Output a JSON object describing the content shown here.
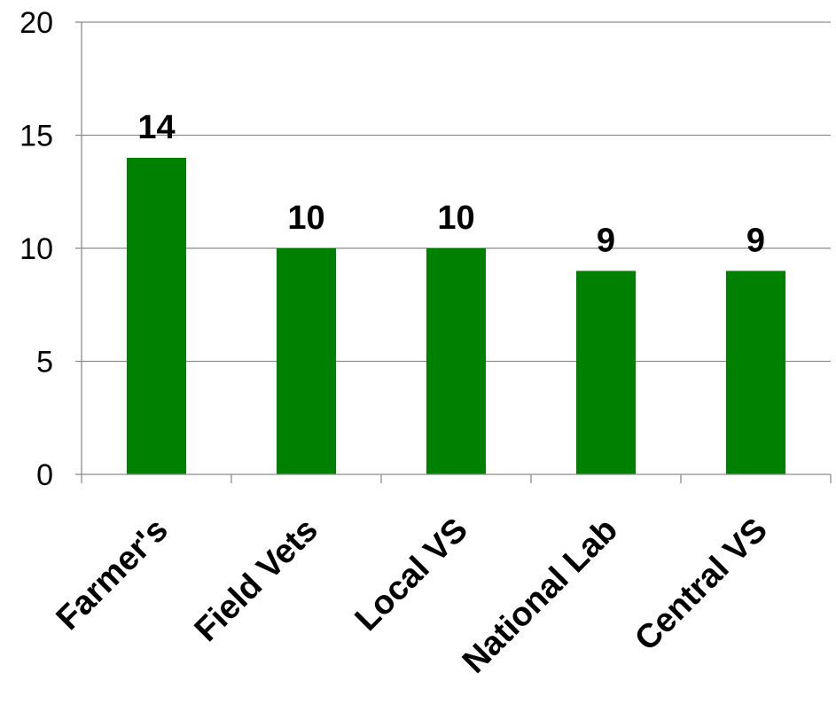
{
  "chart_data": {
    "type": "bar",
    "title": "",
    "xlabel": "",
    "ylabel": "",
    "categories": [
      "Farmer's",
      "Field Vets",
      "Local VS",
      "National Lab",
      "Central VS"
    ],
    "values": [
      14,
      10,
      10,
      9,
      9
    ],
    "data_labels": [
      "14",
      "10",
      "10",
      "9",
      "9"
    ],
    "ylim": [
      0,
      20
    ],
    "yticks": [
      0,
      5,
      10,
      15,
      20
    ],
    "ytick_labels": [
      "0",
      "5",
      "10",
      "15",
      "20"
    ],
    "grid": true,
    "legend": "none",
    "bar_color": "#008000"
  }
}
